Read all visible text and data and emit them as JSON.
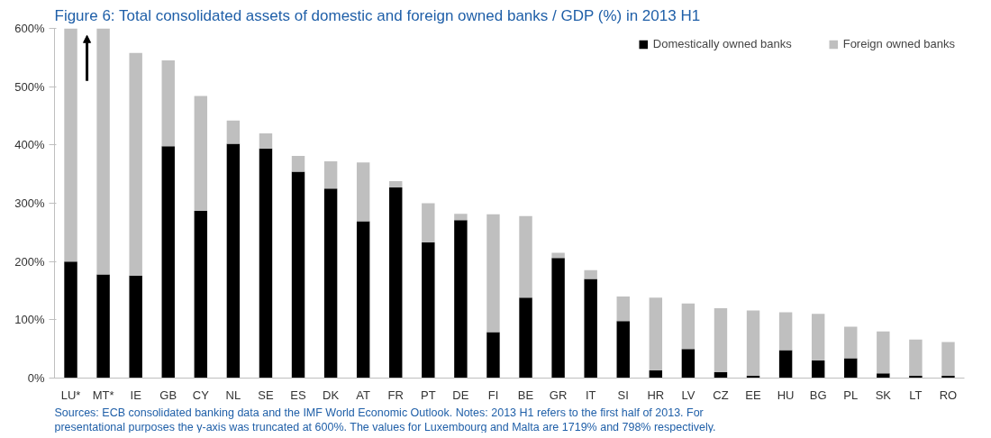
{
  "chart_data": {
    "type": "bar",
    "stacked": true,
    "title": "Figure 6: Total consolidated assets of domestic and foreign owned banks / GDP (%) in 2013 H1",
    "categories": [
      "LU*",
      "MT*",
      "IE",
      "GB",
      "CY",
      "NL",
      "SE",
      "ES",
      "DK",
      "AT",
      "FR",
      "PT",
      "DE",
      "FI",
      "BE",
      "GR",
      "IT",
      "SI",
      "HR",
      "LV",
      "CZ",
      "EE",
      "HU",
      "BG",
      "PL",
      "SK",
      "LT",
      "RO"
    ],
    "series": [
      {
        "name": "Domestically owned banks",
        "color": "#000000",
        "values": [
          200,
          178,
          176,
          398,
          287,
          402,
          394,
          354,
          325,
          269,
          327,
          233,
          271,
          79,
          138,
          206,
          170,
          98,
          13,
          50,
          10,
          4,
          48,
          30,
          34,
          8,
          4,
          4
        ]
      },
      {
        "name": "Foreign owned banks",
        "color": "#bfbfbf",
        "values": [
          400,
          422,
          382,
          147,
          197,
          40,
          26,
          27,
          47,
          101,
          11,
          67,
          11,
          202,
          140,
          9,
          15,
          42,
          125,
          78,
          110,
          112,
          65,
          80,
          54,
          72,
          62,
          58
        ]
      }
    ],
    "ylim": [
      0,
      600
    ],
    "yticks": [
      {
        "value": 0,
        "label": "0%"
      },
      {
        "value": 100,
        "label": "100%"
      },
      {
        "value": 200,
        "label": "200%"
      },
      {
        "value": 300,
        "label": "300%"
      },
      {
        "value": 400,
        "label": "400%"
      },
      {
        "value": 500,
        "label": "500%"
      },
      {
        "value": 600,
        "label": "600%"
      }
    ],
    "grid": false,
    "legend": "top right",
    "annotations": [
      "Sources: ECB consolidated banking data and the IMF World Economic Outlook. Notes: 2013 H1 refers to the first half of 2013. For",
      "presentational purposes the y-axis was truncated at 600%. The values for Luxembourg and Malta are 1719% and 798% respectively."
    ]
  }
}
